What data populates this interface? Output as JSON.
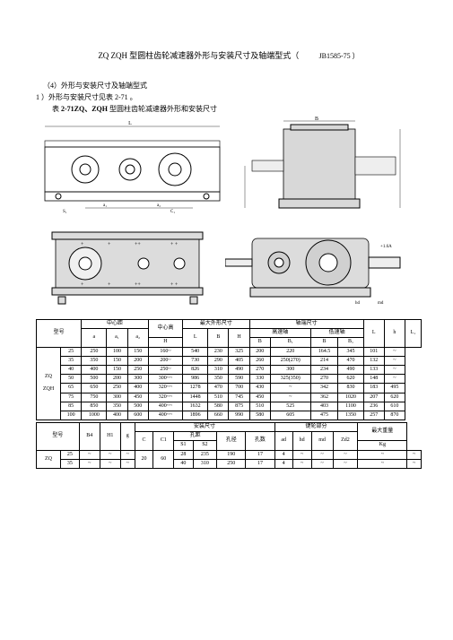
{
  "title_main": "ZQ ZQH 型圆柱齿轮减速器外形与安装尺寸及轴端型式（",
  "doc_id": "JB1585-75 ）",
  "sect_4": "（4）外形与安装尺寸及轴端型式",
  "sect_1": "1 ）外形与安装尺寸见表 2-71 。",
  "tabcap_pre": "表 ",
  "tabcap_bold": "2-71ZQ、ZQH",
  "tabcap_post": " 型圆柱齿轮减速器外形和安装尺寸",
  "headers": {
    "model": "型号",
    "center_dist": "中心距",
    "center_h": "中心高",
    "max_outer": "最大外形尺寸",
    "shaft_end": "轴端尺寸",
    "a": "a",
    "a1": "a₁",
    "a2": "a₂",
    "H": "H",
    "L": "L",
    "B": "B",
    "H2": "H",
    "hi_shaft": "高速轴",
    "lo_shaft": "低速轴",
    "bB": "B",
    "bBr": "B₁",
    "Bc": "B",
    "Br2": "B₁",
    "Lc": "L",
    "hc": "h",
    "Lm": "L₁",
    "install": "安装尺寸",
    "keyway": "键轮部分",
    "maxwt": "最大重量",
    "B4": "B4",
    "H1": "H1",
    "g": "g",
    "C": "C",
    "C1": "C1",
    "holed": "孔距",
    "holedia": "孔径",
    "holen": "孔数",
    "S1": "S1",
    "S2": "S2",
    "ad": "ad",
    "hd": "hd",
    "md": "md",
    "Zd2": "Zd2",
    "Kg": "Kg"
  },
  "rows": [
    {
      "s": "25",
      "a": "250",
      "a1": "100",
      "a2": "150",
      "H": "160~",
      "L": "540",
      "B": "230",
      "Hh": "325",
      "hb": "200",
      "hb1": "220",
      "lb": "164.5",
      "lb1": "345",
      "Lc": "101",
      "Lm": "~"
    },
    {
      "s": "35",
      "a": "350",
      "a1": "150",
      "a2": "200",
      "H": "200~",
      "L": "730",
      "B": "290",
      "Hh": "405",
      "hb": "260",
      "hb1": "250(270)",
      "lb": "214",
      "lb1": "470",
      "Lc": "132",
      "Lm": "~"
    },
    {
      "s": "40",
      "a": "400",
      "a1": "150",
      "a2": "250",
      "H": "250~",
      "L": "826",
      "B": "310",
      "Hh": "490",
      "hb": "270",
      "hb1": "300",
      "lb": "234",
      "lb1": "490",
      "Lc": "133",
      "Lm": "~"
    },
    {
      "s": "50",
      "a": "500",
      "a1": "200",
      "a2": "300",
      "H": "300~~",
      "L": "986",
      "B": "350",
      "Hh": "590",
      "hb": "330",
      "hb1": "325(350)",
      "lb": "270",
      "lb1": "620",
      "Lc": "148",
      "Lm": "~"
    },
    {
      "s": "65",
      "a": "650",
      "a1": "250",
      "a2": "400",
      "H": "320~~",
      "L": "1278",
      "B": "470",
      "Hh": "700",
      "hb": "430",
      "hb1": "~",
      "lb": "342",
      "lb1": "830",
      "Lc": "183",
      "Lm": "495"
    },
    {
      "s": "75",
      "a": "750",
      "a1": "300",
      "a2": "450",
      "H": "320~~",
      "L": "1448",
      "B": "510",
      "Hh": "745",
      "hb": "450",
      "hb1": "~",
      "lb": "362",
      "lb1": "1020",
      "Lc": "207",
      "Lm": "620"
    },
    {
      "s": "85",
      "a": "850",
      "a1": "350",
      "a2": "500",
      "H": "400~~",
      "L": "1632",
      "B": "580",
      "Hh": "875",
      "hb": "510",
      "hb1": "525",
      "lb": "403",
      "lb1": "1100",
      "Lc": "236",
      "Lm": "610"
    },
    {
      "s": "100",
      "a": "1000",
      "a1": "400",
      "a2": "600",
      "H": "400~~",
      "L": "1896",
      "B": "660",
      "Hh": "990",
      "hb": "580",
      "hb1": "605",
      "lb": "475",
      "lb1": "1350",
      "Lc": "257",
      "Lm": "870"
    }
  ],
  "rows2": [
    {
      "s": "25",
      "B4": "~",
      "H1": "~",
      "g": "~",
      "C": "20",
      "C1": "60",
      "r11": "28",
      "S1": "235",
      "S2": "190",
      "hd": "17",
      "hn": "4",
      "ad": "~",
      "hdk": "~",
      "md": "~",
      "zd2": "~",
      "kg": "~"
    },
    {
      "s": "35",
      "B4": "~",
      "H1": "~",
      "g": "~",
      "C": "25",
      "C1": "100",
      "r11": "40",
      "S1": "310",
      "S2": "250",
      "hd": "17",
      "hn": "4",
      "ad": "~",
      "hdk": "~",
      "md": "~",
      "zd2": "~",
      "kg": "~"
    }
  ],
  "model_left": "ZQ",
  "model_left2": "ZQH",
  "model_left3": "ZQ",
  "colors": {
    "line": "#000",
    "lightline": "#444",
    "bg": "#fff"
  }
}
